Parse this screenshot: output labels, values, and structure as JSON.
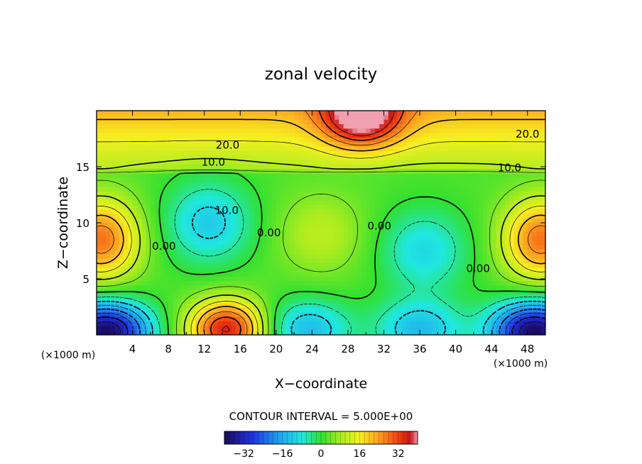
{
  "chart_data": {
    "type": "heatmap",
    "title": "zonal velocity",
    "xlabel": "X−coordinate",
    "ylabel": "Z−coordinate",
    "x_unit": "(×1000 m)",
    "z_unit": "(×1000 m)",
    "xlim": [
      0,
      50
    ],
    "ylim": [
      0,
      20
    ],
    "x_ticks": [
      "4",
      "8",
      "12",
      "16",
      "20",
      "24",
      "28",
      "32",
      "36",
      "40",
      "44",
      "48"
    ],
    "x_tick_values": [
      4,
      8,
      12,
      16,
      20,
      24,
      28,
      32,
      36,
      40,
      44,
      48
    ],
    "y_ticks": [
      "5",
      "10",
      "15"
    ],
    "y_tick_values": [
      5,
      10,
      15
    ],
    "contour_interval_text": "CONTOUR INTERVAL = 5.000E+00",
    "contour_interval": 5.0,
    "contour_labels": [
      {
        "text": "20.0",
        "x": 14.6,
        "z": 16.6
      },
      {
        "text": "20.0",
        "x": 48.0,
        "z": 17.6
      },
      {
        "text": "10.0",
        "x": 13.0,
        "z": 15.1
      },
      {
        "text": "10.0",
        "x": 46.0,
        "z": 14.6
      },
      {
        "text": "10.0",
        "x": 14.5,
        "z": 10.8
      },
      {
        "text": "0.00",
        "x": 7.5,
        "z": 7.6
      },
      {
        "text": "0.00",
        "x": 19.2,
        "z": 8.8
      },
      {
        "text": "0.00",
        "x": 31.5,
        "z": 9.4
      },
      {
        "text": "0.00",
        "x": 42.5,
        "z": 5.6
      }
    ],
    "colorbar": {
      "range": [
        -40,
        40
      ],
      "ticks": [
        "−32",
        "−16",
        "0",
        "16",
        "32"
      ],
      "tick_values": [
        -32,
        -16,
        0,
        16,
        32
      ]
    },
    "field_features": [
      {
        "kind": "max",
        "x": 0.5,
        "z": 8.5,
        "value": 30
      },
      {
        "kind": "max",
        "x": 49.5,
        "z": 8.5,
        "value": 30
      },
      {
        "kind": "max",
        "x": 14.5,
        "z": 0.5,
        "value": 38
      },
      {
        "kind": "max",
        "x": 29.5,
        "z": 19.5,
        "value": 33
      },
      {
        "kind": "max",
        "x": 25.0,
        "z": 9.0,
        "value": 12
      },
      {
        "kind": "min",
        "x": 12.5,
        "z": 10.0,
        "value": -10
      },
      {
        "kind": "min",
        "x": 36.5,
        "z": 7.5,
        "value": -8
      },
      {
        "kind": "min",
        "x": 1.0,
        "z": 0.3,
        "value": -38
      },
      {
        "kind": "min",
        "x": 48.8,
        "z": 0.3,
        "value": -38
      },
      {
        "kind": "min",
        "x": 23.5,
        "z": 0.5,
        "value": -12
      },
      {
        "kind": "min",
        "x": 36.0,
        "z": 0.5,
        "value": -12
      }
    ]
  }
}
